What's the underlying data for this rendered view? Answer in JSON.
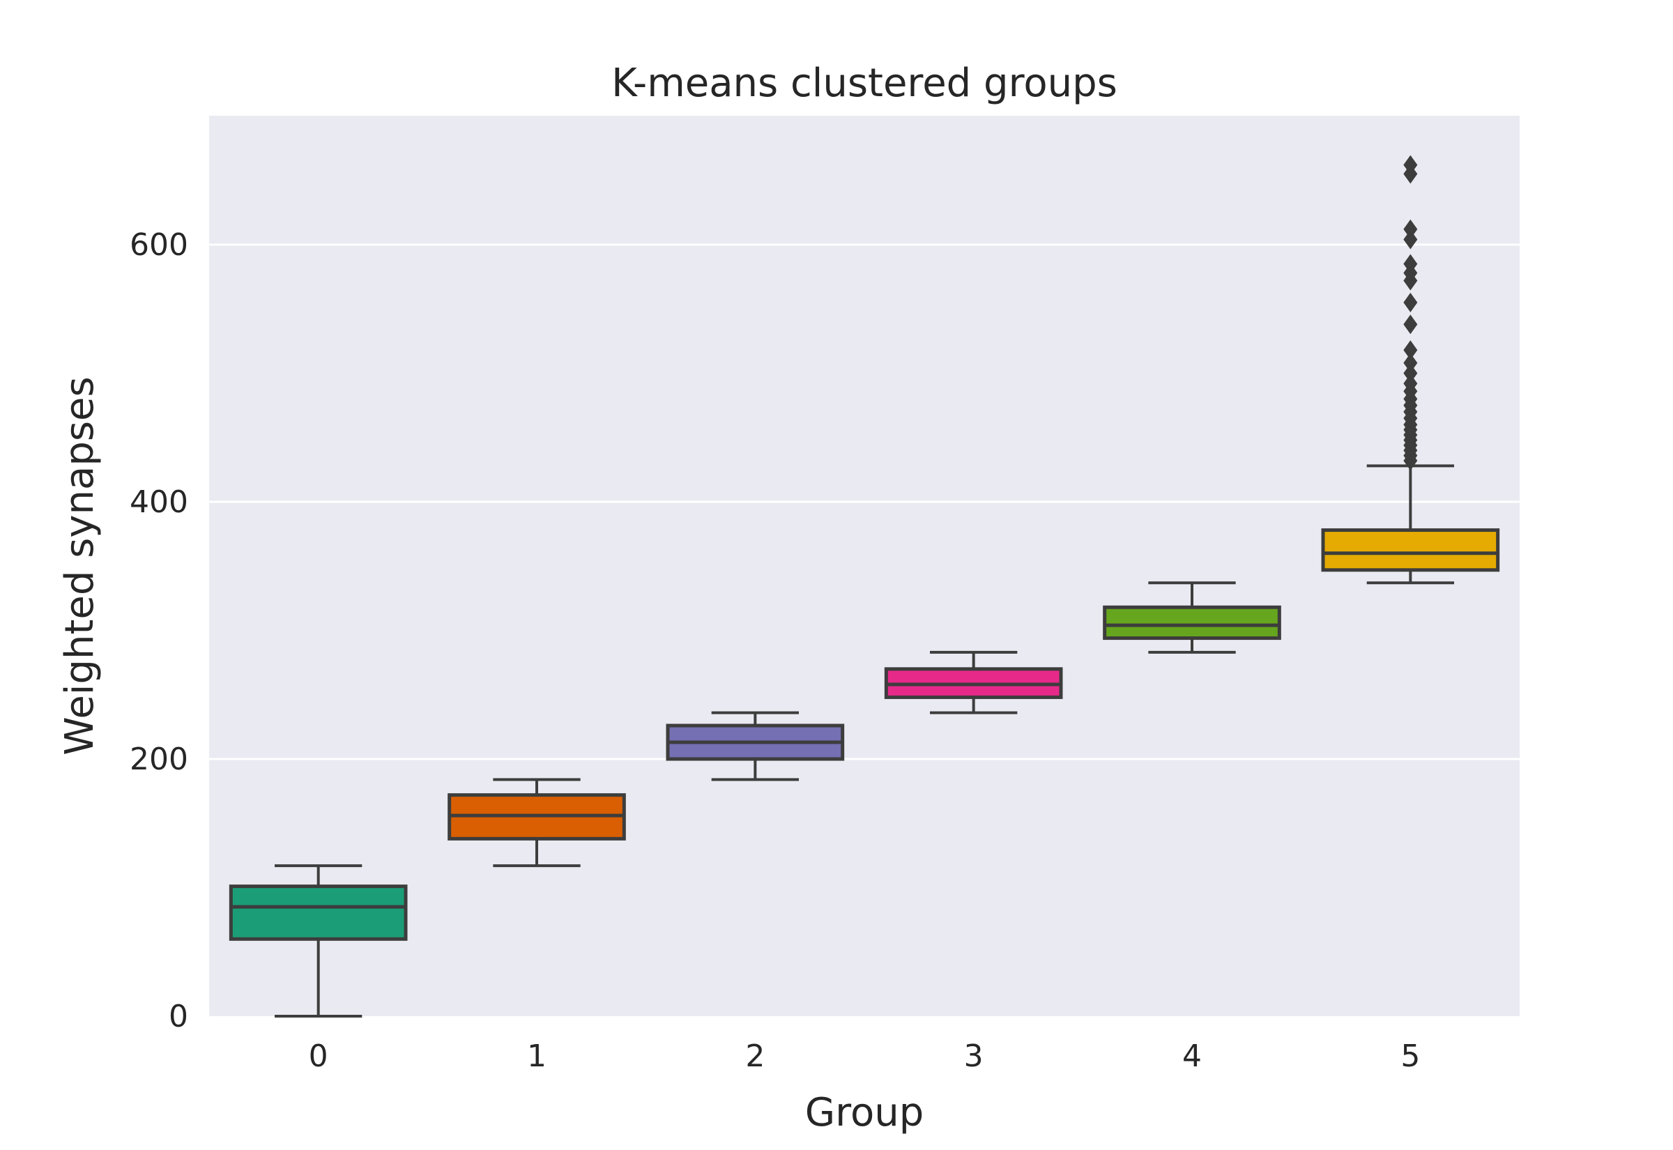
{
  "chart_data": {
    "type": "box",
    "title": "K-means clustered groups",
    "xlabel": "Group",
    "ylabel": "Weighted synapses",
    "categories": [
      "0",
      "1",
      "2",
      "3",
      "4",
      "5"
    ],
    "ylim": [
      0,
      700
    ],
    "yticks": [
      0,
      200,
      400,
      600
    ],
    "ytick_labels": [
      "0",
      "200",
      "400",
      "600"
    ],
    "grid": true,
    "background": "#eaeaf2",
    "grid_color": "#ffffff",
    "line_color": "#3d3d3d",
    "boxes": [
      {
        "group": "0",
        "color": "#1b9e77",
        "whisker_low": 0,
        "q1": 60,
        "median": 85,
        "q3": 101,
        "whisker_high": 117,
        "outliers": []
      },
      {
        "group": "1",
        "color": "#d95f02",
        "whisker_low": 117,
        "q1": 138,
        "median": 156,
        "q3": 172,
        "whisker_high": 184,
        "outliers": []
      },
      {
        "group": "2",
        "color": "#7570b3",
        "whisker_low": 184,
        "q1": 200,
        "median": 213,
        "q3": 226,
        "whisker_high": 236,
        "outliers": []
      },
      {
        "group": "3",
        "color": "#e7298a",
        "whisker_low": 236,
        "q1": 248,
        "median": 258,
        "q3": 270,
        "whisker_high": 283,
        "outliers": []
      },
      {
        "group": "4",
        "color": "#66a61e",
        "whisker_low": 283,
        "q1": 294,
        "median": 304,
        "q3": 318,
        "whisker_high": 337,
        "outliers": []
      },
      {
        "group": "5",
        "color": "#e6ab02",
        "whisker_low": 337,
        "q1": 347,
        "median": 360,
        "q3": 378,
        "whisker_high": 428,
        "outliers": [
          432,
          436,
          440,
          444,
          448,
          452,
          456,
          460,
          465,
          470,
          475,
          480,
          486,
          492,
          500,
          508,
          518,
          538,
          555,
          572,
          578,
          585,
          604,
          612,
          655,
          662
        ]
      }
    ]
  }
}
